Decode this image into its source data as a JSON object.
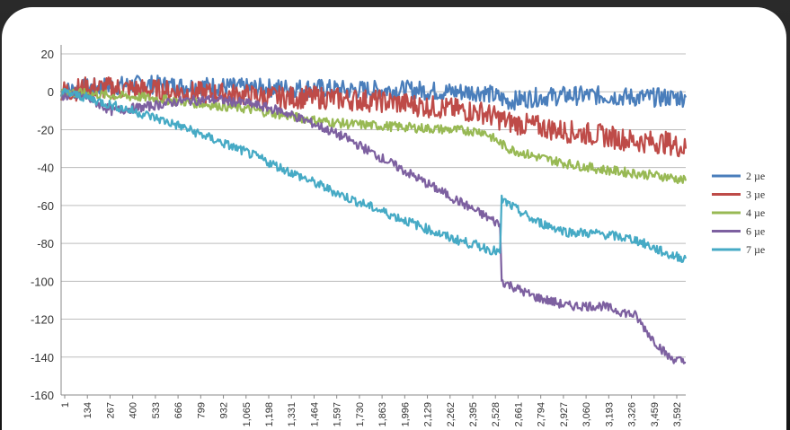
{
  "chart_data": {
    "type": "line",
    "title": "",
    "xlabel": "",
    "ylabel": "",
    "ylim": [
      -160,
      20
    ],
    "yticks": [
      20,
      0,
      -20,
      -40,
      -60,
      -80,
      -100,
      -120,
      -140,
      -160
    ],
    "xlim": [
      1,
      3700
    ],
    "xtick_labels": [
      "1",
      "134",
      "267",
      "400",
      "533",
      "666",
      "799",
      "932",
      "1,065",
      "1,198",
      "1,331",
      "1,464",
      "1,597",
      "1,730",
      "1,863",
      "1,996",
      "2,129",
      "2,262",
      "2,395",
      "2,528",
      "2,661",
      "2,794",
      "2,927",
      "3,060",
      "3,193",
      "3,326",
      "3,459",
      "3,592"
    ],
    "grid": "horizontal",
    "legend_position": "right",
    "series": [
      {
        "name": "2 µe",
        "color": "#4a7ebb",
        "x": [
          1,
          150,
          300,
          500,
          700,
          900,
          1100,
          1300,
          1500,
          1700,
          1900,
          2100,
          2300,
          2500,
          2650,
          2800,
          3000,
          3200,
          3400,
          3600,
          3700
        ],
        "values": [
          0,
          2,
          3,
          4,
          3,
          3,
          2,
          2,
          2,
          1,
          1,
          1,
          0,
          0,
          -5,
          -3,
          -2,
          -2,
          -3,
          -3,
          -3
        ]
      },
      {
        "name": "3 µe",
        "color": "#be4b48",
        "x": [
          1,
          150,
          300,
          500,
          700,
          900,
          1100,
          1300,
          1500,
          1700,
          1900,
          2100,
          2300,
          2500,
          2650,
          2800,
          3000,
          3200,
          3400,
          3600,
          3700
        ],
        "values": [
          0,
          2,
          2,
          1,
          0,
          -1,
          -2,
          -3,
          -3,
          -4,
          -5,
          -7,
          -9,
          -11,
          -16,
          -18,
          -21,
          -23,
          -26,
          -27,
          -30
        ]
      },
      {
        "name": "4 µe",
        "color": "#98b954",
        "x": [
          1,
          150,
          300,
          500,
          700,
          900,
          1100,
          1300,
          1500,
          1700,
          1900,
          2100,
          2300,
          2500,
          2650,
          2800,
          3000,
          3200,
          3400,
          3600,
          3700
        ],
        "values": [
          0,
          -1,
          -2,
          -3,
          -5,
          -7,
          -9,
          -12,
          -15,
          -17,
          -18,
          -19,
          -20,
          -21,
          -30,
          -34,
          -38,
          -41,
          -43,
          -45,
          -47
        ]
      },
      {
        "name": "6 µe",
        "color": "#7d60a0",
        "x": [
          1,
          150,
          300,
          500,
          700,
          900,
          1100,
          1300,
          1500,
          1700,
          1900,
          2100,
          2300,
          2500,
          2600,
          2610,
          2800,
          3000,
          3200,
          3400,
          3500,
          3600,
          3700
        ],
        "values": [
          -2,
          -3,
          -10,
          -8,
          -5,
          -4,
          -6,
          -10,
          -17,
          -25,
          -35,
          -45,
          -55,
          -65,
          -70,
          -100,
          -108,
          -113,
          -113,
          -118,
          -130,
          -140,
          -143
        ]
      },
      {
        "name": "7 µe",
        "color": "#46aac5",
        "x": [
          1,
          150,
          300,
          500,
          700,
          900,
          1100,
          1300,
          1500,
          1700,
          1900,
          2100,
          2300,
          2500,
          2600,
          2610,
          2800,
          3000,
          3200,
          3400,
          3500,
          3600,
          3700
        ],
        "values": [
          0,
          -3,
          -7,
          -12,
          -18,
          -25,
          -32,
          -40,
          -48,
          -56,
          -63,
          -70,
          -77,
          -82,
          -85,
          -57,
          -68,
          -74,
          -75,
          -78,
          -82,
          -86,
          -88
        ]
      }
    ]
  }
}
